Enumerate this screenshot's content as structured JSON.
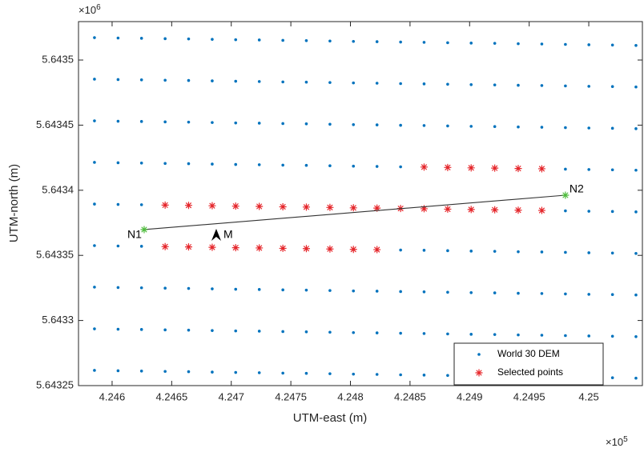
{
  "chart_data": {
    "type": "scatter",
    "xlabel": "UTM-east (m)",
    "ylabel": "UTM-north (m)",
    "x_exponent": {
      "base": "×10",
      "power": "5"
    },
    "y_exponent": {
      "base": "×10",
      "power": "6"
    },
    "xlim": [
      4.245718,
      4.25045
    ],
    "ylim": [
      5.64325,
      5.6435295
    ],
    "xticks": [
      4.246,
      4.2465,
      4.247,
      4.2475,
      4.248,
      4.2485,
      4.249,
      4.2495,
      4.25
    ],
    "yticks": [
      5.64325,
      5.6433,
      5.64335,
      5.6434,
      5.64345,
      5.6435
    ],
    "legend": "lower right",
    "link_color": "#333333",
    "series": [
      {
        "name": "World 30 DEM",
        "color": "#0072bd",
        "marker": "dot",
        "x": [
          4.245852,
          4.24605,
          4.246247,
          4.246445,
          4.246642,
          4.24684,
          4.247037,
          4.247235,
          4.247433,
          4.24763,
          4.247828,
          4.248025,
          4.248223,
          4.248421,
          4.248618,
          4.248816,
          4.249013,
          4.249211,
          4.249408,
          4.249606,
          4.249804,
          4.250001,
          4.250199,
          4.250396,
          4.245852,
          4.24605,
          4.246247,
          4.246445,
          4.246642,
          4.24684,
          4.247037,
          4.247235,
          4.247433,
          4.24763,
          4.247828,
          4.248025,
          4.248223,
          4.248421,
          4.248618,
          4.248816,
          4.249013,
          4.249211,
          4.249408,
          4.249606,
          4.249804,
          4.250001,
          4.250199,
          4.250396,
          4.245852,
          4.24605,
          4.246247,
          4.246445,
          4.246642,
          4.24684,
          4.247037,
          4.247235,
          4.247433,
          4.24763,
          4.247828,
          4.248025,
          4.248223,
          4.248421,
          4.248618,
          4.248816,
          4.249013,
          4.249211,
          4.249408,
          4.249606,
          4.249804,
          4.250001,
          4.250199,
          4.250396,
          4.245852,
          4.24605,
          4.246247,
          4.246445,
          4.246642,
          4.24684,
          4.247037,
          4.247235,
          4.247433,
          4.24763,
          4.247828,
          4.248025,
          4.248223,
          4.248421,
          4.248618,
          4.248816,
          4.249013,
          4.249211,
          4.249408,
          4.249606,
          4.249804,
          4.250001,
          4.250199,
          4.250396,
          4.245852,
          4.24605,
          4.246247,
          4.246445,
          4.246642,
          4.24684,
          4.247037,
          4.247235,
          4.247433,
          4.24763,
          4.247828,
          4.248025,
          4.248223,
          4.248421,
          4.248618,
          4.248816,
          4.249013,
          4.249211,
          4.249408,
          4.249606,
          4.249804,
          4.250001,
          4.250199,
          4.250396,
          4.245852,
          4.24605,
          4.246247,
          4.246445,
          4.246642,
          4.24684,
          4.247037,
          4.247235,
          4.247433,
          4.24763,
          4.247828,
          4.248025,
          4.248223,
          4.248421,
          4.248618,
          4.248816,
          4.249013,
          4.249211,
          4.249408,
          4.249606,
          4.249804,
          4.250001,
          4.250199,
          4.250396,
          4.245852,
          4.24605,
          4.246247,
          4.246445,
          4.246642,
          4.24684,
          4.247037,
          4.247235,
          4.247433,
          4.24763,
          4.247828,
          4.248025,
          4.248223,
          4.248421,
          4.248618,
          4.248816,
          4.249013,
          4.249211,
          4.249408,
          4.249606,
          4.249804,
          4.250001,
          4.250199,
          4.250396,
          4.245852,
          4.24605,
          4.246247,
          4.246445,
          4.246642,
          4.24684,
          4.247037,
          4.247235,
          4.247433,
          4.24763,
          4.247828,
          4.248025,
          4.248223,
          4.248421,
          4.248618,
          4.248816,
          4.249013,
          4.249211,
          4.249408,
          4.249606,
          4.249804,
          4.250001,
          4.250199,
          4.250396,
          4.245852,
          4.24605,
          4.246247,
          4.246445,
          4.246642,
          4.24684,
          4.247037,
          4.247235,
          4.247433,
          4.24763,
          4.247828,
          4.248025,
          4.248223,
          4.248421,
          4.248618,
          4.248816,
          4.249013,
          4.249211,
          4.249408,
          4.249606,
          4.249804,
          4.250001,
          4.250199,
          4.250396
        ],
        "values": [
          5.6435172,
          5.6435169,
          5.6435167,
          5.6435164,
          5.6435162,
          5.6435159,
          5.6435156,
          5.6435154,
          5.6435151,
          5.6435149,
          5.6435146,
          5.6435143,
          5.6435141,
          5.6435138,
          5.6435136,
          5.6435133,
          5.643513,
          5.6435128,
          5.6435125,
          5.6435123,
          5.643512,
          5.6435117,
          5.6435115,
          5.6435112,
          5.6434853,
          5.643485,
          5.6434848,
          5.6434845,
          5.6434843,
          5.643484,
          5.6434837,
          5.6434835,
          5.6434832,
          5.643483,
          5.6434827,
          5.6434824,
          5.6434822,
          5.6434819,
          5.6434817,
          5.6434814,
          5.6434811,
          5.6434809,
          5.6434806,
          5.6434804,
          5.6434801,
          5.6434798,
          5.6434796,
          5.6434793,
          5.6434533,
          5.643453,
          5.6434528,
          5.6434525,
          5.6434523,
          5.643452,
          5.6434517,
          5.6434515,
          5.6434512,
          5.643451,
          5.6434507,
          5.6434504,
          5.6434502,
          5.6434499,
          5.6434497,
          5.6434494,
          5.6434491,
          5.6434489,
          5.6434486,
          5.6434484,
          5.6434481,
          5.6434478,
          5.6434476,
          5.6434473,
          5.6434214,
          5.6434211,
          5.6434209,
          5.6434206,
          5.6434204,
          5.6434201,
          5.6434198,
          5.6434196,
          5.6434193,
          5.6434191,
          5.6434188,
          5.6434185,
          5.6434183,
          5.643418,
          5.6434178,
          5.6434175,
          5.6434172,
          5.643417,
          5.6434167,
          5.6434165,
          5.6434162,
          5.6434159,
          5.6434157,
          5.6434154,
          5.6433894,
          5.6433891,
          5.6433889,
          5.6433886,
          5.6433884,
          5.6433881,
          5.6433878,
          5.6433876,
          5.6433873,
          5.6433871,
          5.6433868,
          5.6433865,
          5.6433863,
          5.643386,
          5.6433858,
          5.6433855,
          5.6433852,
          5.643385,
          5.6433847,
          5.6433845,
          5.6433842,
          5.6433839,
          5.6433837,
          5.6433834,
          5.6433575,
          5.6433572,
          5.643357,
          5.6433567,
          5.6433565,
          5.6433562,
          5.6433559,
          5.6433557,
          5.6433554,
          5.6433552,
          5.6433549,
          5.6433546,
          5.6433544,
          5.6433541,
          5.6433539,
          5.6433536,
          5.6433533,
          5.6433531,
          5.6433528,
          5.6433526,
          5.6433523,
          5.643352,
          5.6433518,
          5.6433515,
          5.6433256,
          5.6433253,
          5.6433251,
          5.6433248,
          5.6433246,
          5.6433243,
          5.643324,
          5.6433238,
          5.6433235,
          5.6433233,
          5.643323,
          5.6433227,
          5.6433225,
          5.6433222,
          5.643322,
          5.6433217,
          5.6433214,
          5.6433212,
          5.6433209,
          5.6433207,
          5.6433204,
          5.6433201,
          5.6433199,
          5.6433196,
          5.6432936,
          5.6432933,
          5.6432931,
          5.6432928,
          5.6432926,
          5.6432923,
          5.643292,
          5.6432918,
          5.6432915,
          5.6432913,
          5.643291,
          5.6432907,
          5.6432905,
          5.6432902,
          5.64329,
          5.6432897,
          5.6432894,
          5.6432892,
          5.6432889,
          5.6432887,
          5.6432884,
          5.6432881,
          5.6432879,
          5.6432876,
          5.6432617,
          5.6432614,
          5.6432612,
          5.6432609,
          5.6432607,
          5.6432604,
          5.6432601,
          5.6432599,
          5.6432596,
          5.6432594,
          5.6432591,
          5.6432588,
          5.6432586,
          5.6432583,
          5.6432581,
          5.6432578,
          5.6432575,
          5.6432573,
          5.643257,
          5.6432568,
          5.6432565,
          5.6432562,
          5.643256,
          5.6432557
        ]
      },
      {
        "name": "Selected points",
        "color": "#e8262a",
        "marker": "asterisk",
        "x": [
          4.248618,
          4.248816,
          4.249013,
          4.249211,
          4.249408,
          4.249606,
          4.246445,
          4.246642,
          4.24684,
          4.247037,
          4.247235,
          4.247433,
          4.24763,
          4.247828,
          4.248025,
          4.248223,
          4.248421,
          4.248618,
          4.248816,
          4.249013,
          4.249211,
          4.249408,
          4.249606,
          4.246445,
          4.246642,
          4.24684,
          4.247037,
          4.247235,
          4.247433,
          4.24763,
          4.247828,
          4.248025,
          4.248223
        ],
        "values": [
          5.6434178,
          5.6434175,
          5.6434172,
          5.643417,
          5.6434167,
          5.6434165,
          5.6433886,
          5.6433884,
          5.6433881,
          5.6433878,
          5.6433876,
          5.6433873,
          5.6433871,
          5.6433868,
          5.6433865,
          5.6433863,
          5.643386,
          5.6433858,
          5.6433855,
          5.6433852,
          5.643385,
          5.6433847,
          5.6433845,
          5.6433567,
          5.6433565,
          5.6433562,
          5.6433559,
          5.6433557,
          5.6433554,
          5.6433552,
          5.6433549,
          5.6433546,
          5.6433544
        ]
      }
    ],
    "annotations": [
      {
        "label": "N1",
        "x": 4.246269,
        "y": 5.6433698,
        "marker": "star",
        "color": "#4cbb3a"
      },
      {
        "label": "N2",
        "x": 4.249804,
        "y": 5.6433962,
        "marker": "star",
        "color": "#4cbb3a"
      },
      {
        "label": "M",
        "x": 4.246874,
        "y": 5.6433649,
        "marker": "arrow",
        "color": "#000000"
      }
    ]
  }
}
